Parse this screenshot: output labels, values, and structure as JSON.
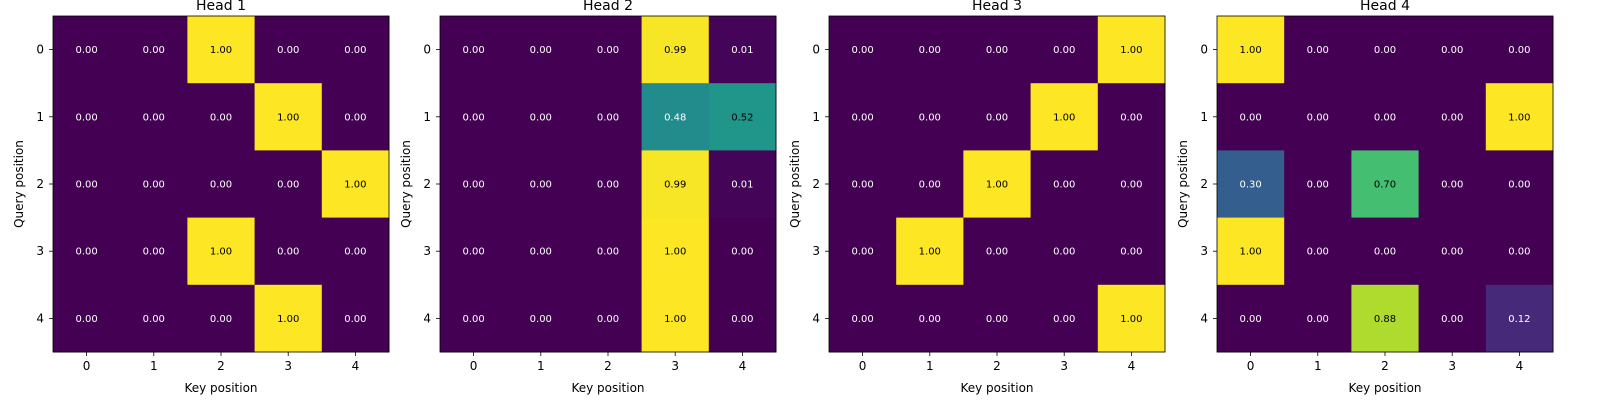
{
  "colors": {
    "viridis_low": "#440154",
    "viridis_high": "#fde725",
    "text_on_dark": "#ffffff",
    "text_on_light": "#000000",
    "axis": "#000000"
  },
  "chart_data": [
    {
      "type": "heatmap",
      "title": "Head 1",
      "xlabel": "Key position",
      "ylabel": "Query position",
      "x_ticks": [
        "0",
        "1",
        "2",
        "3",
        "4"
      ],
      "y_ticks": [
        "0",
        "1",
        "2",
        "3",
        "4"
      ],
      "colormap": "viridis",
      "vmin": 0,
      "vmax": 1,
      "values": [
        [
          0.0,
          0.0,
          1.0,
          0.0,
          0.0
        ],
        [
          0.0,
          0.0,
          0.0,
          1.0,
          0.0
        ],
        [
          0.0,
          0.0,
          0.0,
          0.0,
          1.0
        ],
        [
          0.0,
          0.0,
          1.0,
          0.0,
          0.0
        ],
        [
          0.0,
          0.0,
          0.0,
          1.0,
          0.0
        ]
      ]
    },
    {
      "type": "heatmap",
      "title": "Head 2",
      "xlabel": "Key position",
      "ylabel": "Query position",
      "x_ticks": [
        "0",
        "1",
        "2",
        "3",
        "4"
      ],
      "y_ticks": [
        "0",
        "1",
        "2",
        "3",
        "4"
      ],
      "colormap": "viridis",
      "vmin": 0,
      "vmax": 1,
      "values": [
        [
          0.0,
          0.0,
          0.0,
          0.99,
          0.01
        ],
        [
          0.0,
          0.0,
          0.0,
          0.48,
          0.52
        ],
        [
          0.0,
          0.0,
          0.0,
          0.99,
          0.01
        ],
        [
          0.0,
          0.0,
          0.0,
          1.0,
          0.0
        ],
        [
          0.0,
          0.0,
          0.0,
          1.0,
          0.0
        ]
      ]
    },
    {
      "type": "heatmap",
      "title": "Head 3",
      "xlabel": "Key position",
      "ylabel": "Query position",
      "x_ticks": [
        "0",
        "1",
        "2",
        "3",
        "4"
      ],
      "y_ticks": [
        "0",
        "1",
        "2",
        "3",
        "4"
      ],
      "colormap": "viridis",
      "vmin": 0,
      "vmax": 1,
      "values": [
        [
          0.0,
          0.0,
          0.0,
          0.0,
          1.0
        ],
        [
          0.0,
          0.0,
          0.0,
          1.0,
          0.0
        ],
        [
          0.0,
          0.0,
          1.0,
          0.0,
          0.0
        ],
        [
          0.0,
          1.0,
          0.0,
          0.0,
          0.0
        ],
        [
          0.0,
          0.0,
          0.0,
          0.0,
          1.0
        ]
      ]
    },
    {
      "type": "heatmap",
      "title": "Head 4",
      "xlabel": "Key position",
      "ylabel": "Query position",
      "x_ticks": [
        "0",
        "1",
        "2",
        "3",
        "4"
      ],
      "y_ticks": [
        "0",
        "1",
        "2",
        "3",
        "4"
      ],
      "colormap": "viridis",
      "vmin": 0,
      "vmax": 1,
      "values": [
        [
          1.0,
          0.0,
          0.0,
          0.0,
          0.0
        ],
        [
          0.0,
          0.0,
          0.0,
          0.0,
          1.0
        ],
        [
          0.3,
          0.0,
          0.7,
          0.0,
          0.0
        ],
        [
          1.0,
          0.0,
          0.0,
          0.0,
          0.0
        ],
        [
          0.0,
          0.0,
          0.88,
          0.0,
          0.12
        ]
      ]
    }
  ]
}
